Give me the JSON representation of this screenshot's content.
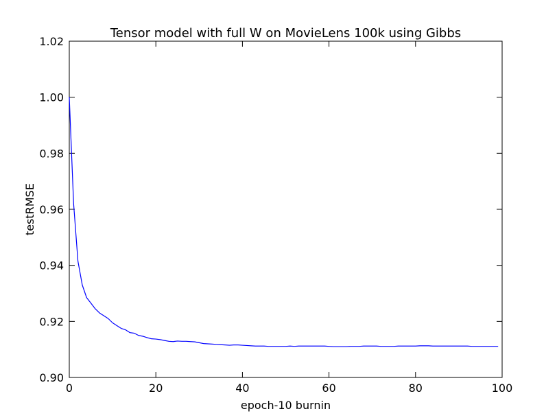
{
  "chart_data": {
    "type": "line",
    "title": "Tensor model with full W on MovieLens 100k using Gibbs",
    "xlabel": "epoch-10 burnin",
    "ylabel": "testRMSE",
    "xlim": [
      0,
      100
    ],
    "ylim": [
      0.9,
      1.02
    ],
    "grid": false,
    "x_ticks": [
      0,
      20,
      40,
      60,
      80,
      100
    ],
    "x_tick_labels": [
      "0",
      "20",
      "40",
      "60",
      "80",
      "100"
    ],
    "y_ticks": [
      0.9,
      0.92,
      0.94,
      0.96,
      0.98,
      1.0,
      1.02
    ],
    "y_tick_labels": [
      "0.90",
      "0.92",
      "0.94",
      "0.96",
      "0.98",
      "1.00",
      "1.02"
    ],
    "series": [
      {
        "color": "#0000ff",
        "x": [
          0,
          1,
          2,
          3,
          4,
          5,
          6,
          7,
          8,
          9,
          10,
          11,
          12,
          13,
          14,
          15,
          16,
          17,
          18,
          19,
          20,
          21,
          22,
          23,
          24,
          25,
          26,
          27,
          28,
          29,
          30,
          31,
          32,
          33,
          34,
          35,
          36,
          37,
          38,
          39,
          40,
          41,
          42,
          43,
          44,
          45,
          46,
          47,
          48,
          49,
          50,
          51,
          52,
          53,
          54,
          55,
          56,
          57,
          58,
          59,
          60,
          61,
          62,
          63,
          64,
          65,
          66,
          67,
          68,
          69,
          70,
          71,
          72,
          73,
          74,
          75,
          76,
          77,
          78,
          79,
          80,
          81,
          82,
          83,
          84,
          85,
          86,
          87,
          88,
          89,
          90,
          91,
          92,
          93,
          94,
          95,
          96,
          97,
          98,
          99
        ],
        "values": [
          1.0,
          0.962,
          0.9415,
          0.933,
          0.9285,
          0.9265,
          0.9245,
          0.923,
          0.922,
          0.921,
          0.9195,
          0.9185,
          0.9175,
          0.917,
          0.916,
          0.9158,
          0.915,
          0.9147,
          0.9142,
          0.9138,
          0.9137,
          0.9135,
          0.9132,
          0.9129,
          0.9128,
          0.913,
          0.9129,
          0.9129,
          0.9128,
          0.9127,
          0.9124,
          0.9121,
          0.912,
          0.9119,
          0.9118,
          0.9117,
          0.9116,
          0.9115,
          0.9116,
          0.9116,
          0.9115,
          0.9114,
          0.9113,
          0.9112,
          0.9112,
          0.9112,
          0.9111,
          0.9111,
          0.9111,
          0.9111,
          0.9111,
          0.9112,
          0.9111,
          0.9112,
          0.9112,
          0.9112,
          0.9112,
          0.9112,
          0.9112,
          0.9112,
          0.9111,
          0.911,
          0.911,
          0.911,
          0.911,
          0.9111,
          0.9111,
          0.9111,
          0.9112,
          0.9112,
          0.9112,
          0.9112,
          0.9111,
          0.9111,
          0.9111,
          0.9111,
          0.9112,
          0.9112,
          0.9112,
          0.9112,
          0.9112,
          0.9113,
          0.9113,
          0.9113,
          0.9112,
          0.9112,
          0.9112,
          0.9112,
          0.9112,
          0.9112,
          0.9112,
          0.9112,
          0.9112,
          0.9111,
          0.9111,
          0.9111,
          0.9111,
          0.9111,
          0.9111,
          0.9111
        ]
      }
    ]
  }
}
